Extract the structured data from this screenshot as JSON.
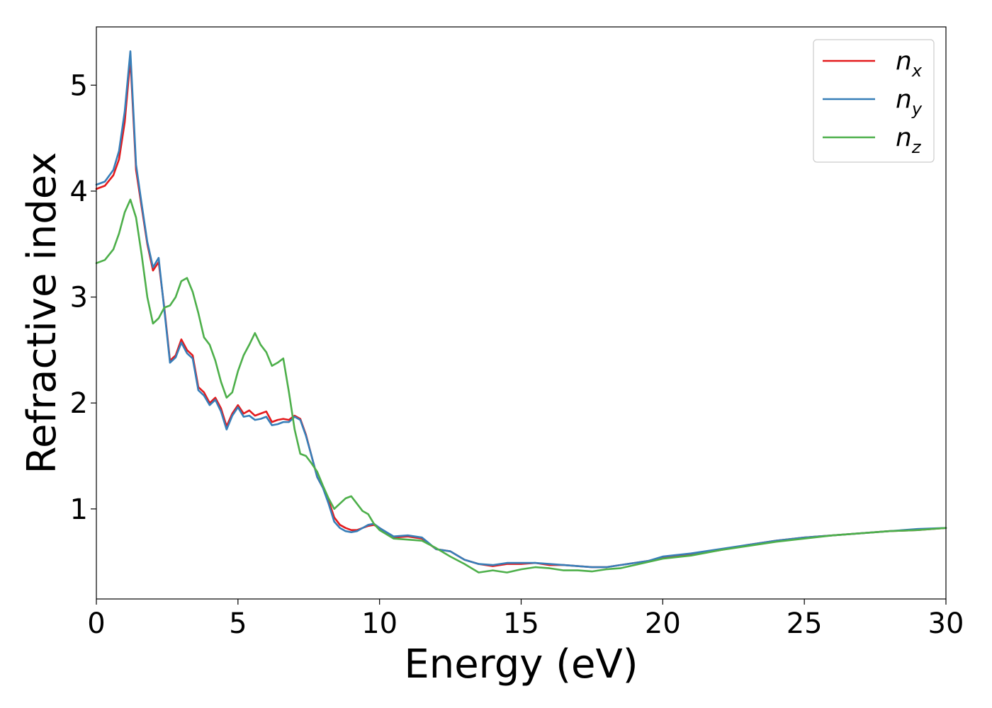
{
  "chart_data": {
    "type": "line",
    "title": "",
    "xlabel": "Energy (eV)",
    "ylabel": "Refractive index",
    "xlim": [
      0,
      30
    ],
    "ylim": [
      0.15,
      5.55
    ],
    "xticks": [
      0,
      5,
      10,
      15,
      20,
      25,
      30
    ],
    "xtick_labels": [
      "0",
      "5",
      "10",
      "15",
      "20",
      "25",
      "30"
    ],
    "yticks": [
      1,
      2,
      3,
      4,
      5
    ],
    "ytick_labels": [
      "1",
      "2",
      "3",
      "4",
      "5"
    ],
    "grid": false,
    "legend_position": "top-right",
    "series": [
      {
        "name": "n",
        "subscript": "x",
        "color": "#e41a1c",
        "x": [
          0,
          0.3,
          0.6,
          0.8,
          1.0,
          1.2,
          1.4,
          1.6,
          1.8,
          2.0,
          2.2,
          2.4,
          2.6,
          2.8,
          3.0,
          3.2,
          3.4,
          3.6,
          3.8,
          4.0,
          4.2,
          4.4,
          4.6,
          4.8,
          5.0,
          5.2,
          5.4,
          5.6,
          5.8,
          6.0,
          6.2,
          6.4,
          6.6,
          6.8,
          7.0,
          7.2,
          7.4,
          7.6,
          7.8,
          8.0,
          8.2,
          8.4,
          8.6,
          8.8,
          9.0,
          9.2,
          9.4,
          9.6,
          9.8,
          10.0,
          10.5,
          11.0,
          11.5,
          12.0,
          12.5,
          13.0,
          13.5,
          14.0,
          14.5,
          15.0,
          15.5,
          16.0,
          16.5,
          17.0,
          17.5,
          18.0,
          18.5,
          19.0,
          19.5,
          20.0,
          21.0,
          22.0,
          23.0,
          24.0,
          25.0,
          26.0,
          27.0,
          28.0,
          29.0,
          30.0
        ],
        "y": [
          4.02,
          4.05,
          4.15,
          4.3,
          4.65,
          5.25,
          4.2,
          3.85,
          3.5,
          3.25,
          3.33,
          2.9,
          2.4,
          2.45,
          2.6,
          2.5,
          2.45,
          2.15,
          2.1,
          2.0,
          2.05,
          1.95,
          1.78,
          1.9,
          1.98,
          1.9,
          1.93,
          1.88,
          1.9,
          1.92,
          1.82,
          1.84,
          1.85,
          1.84,
          1.88,
          1.85,
          1.7,
          1.5,
          1.3,
          1.2,
          1.08,
          0.92,
          0.85,
          0.82,
          0.8,
          0.8,
          0.82,
          0.84,
          0.85,
          0.82,
          0.73,
          0.74,
          0.72,
          0.62,
          0.6,
          0.52,
          0.48,
          0.46,
          0.48,
          0.48,
          0.49,
          0.47,
          0.47,
          0.46,
          0.45,
          0.45,
          0.47,
          0.49,
          0.51,
          0.54,
          0.57,
          0.61,
          0.66,
          0.7,
          0.73,
          0.75,
          0.77,
          0.79,
          0.8,
          0.82
        ]
      },
      {
        "name": "n",
        "subscript": "y",
        "color": "#377eb8",
        "x": [
          0,
          0.3,
          0.6,
          0.8,
          1.0,
          1.2,
          1.4,
          1.6,
          1.8,
          2.0,
          2.2,
          2.4,
          2.6,
          2.8,
          3.0,
          3.2,
          3.4,
          3.6,
          3.8,
          4.0,
          4.2,
          4.4,
          4.6,
          4.8,
          5.0,
          5.2,
          5.4,
          5.6,
          5.8,
          6.0,
          6.2,
          6.4,
          6.6,
          6.8,
          7.0,
          7.2,
          7.4,
          7.6,
          7.8,
          8.0,
          8.2,
          8.4,
          8.6,
          8.8,
          9.0,
          9.2,
          9.4,
          9.6,
          9.8,
          10.0,
          10.5,
          11.0,
          11.5,
          12.0,
          12.5,
          13.0,
          13.5,
          14.0,
          14.5,
          15.0,
          15.5,
          16.0,
          16.5,
          17.0,
          17.5,
          18.0,
          18.5,
          19.0,
          19.5,
          20.0,
          21.0,
          22.0,
          23.0,
          24.0,
          25.0,
          26.0,
          27.0,
          28.0,
          29.0,
          30.0
        ],
        "y": [
          4.06,
          4.09,
          4.2,
          4.38,
          4.75,
          5.32,
          4.25,
          3.88,
          3.52,
          3.28,
          3.37,
          2.88,
          2.38,
          2.43,
          2.57,
          2.47,
          2.42,
          2.12,
          2.07,
          1.98,
          2.03,
          1.92,
          1.75,
          1.88,
          1.96,
          1.87,
          1.88,
          1.84,
          1.85,
          1.87,
          1.79,
          1.8,
          1.82,
          1.82,
          1.87,
          1.84,
          1.69,
          1.5,
          1.3,
          1.2,
          1.05,
          0.88,
          0.82,
          0.79,
          0.78,
          0.79,
          0.82,
          0.85,
          0.86,
          0.82,
          0.74,
          0.75,
          0.73,
          0.62,
          0.6,
          0.52,
          0.48,
          0.47,
          0.49,
          0.49,
          0.49,
          0.48,
          0.47,
          0.46,
          0.45,
          0.45,
          0.47,
          0.49,
          0.51,
          0.55,
          0.58,
          0.62,
          0.66,
          0.7,
          0.73,
          0.75,
          0.77,
          0.79,
          0.81,
          0.82
        ]
      },
      {
        "name": "n",
        "subscript": "z",
        "color": "#4daf4a",
        "x": [
          0,
          0.3,
          0.6,
          0.8,
          1.0,
          1.2,
          1.4,
          1.6,
          1.8,
          2.0,
          2.2,
          2.4,
          2.6,
          2.8,
          3.0,
          3.2,
          3.4,
          3.6,
          3.8,
          4.0,
          4.2,
          4.4,
          4.6,
          4.8,
          5.0,
          5.2,
          5.4,
          5.6,
          5.8,
          6.0,
          6.2,
          6.4,
          6.6,
          6.8,
          7.0,
          7.2,
          7.4,
          7.6,
          7.8,
          8.0,
          8.2,
          8.4,
          8.6,
          8.8,
          9.0,
          9.2,
          9.4,
          9.6,
          9.8,
          10.0,
          10.5,
          11.0,
          11.5,
          12.0,
          12.5,
          13.0,
          13.5,
          14.0,
          14.5,
          15.0,
          15.5,
          16.0,
          16.5,
          17.0,
          17.5,
          18.0,
          18.5,
          19.0,
          19.5,
          20.0,
          21.0,
          22.0,
          23.0,
          24.0,
          25.0,
          26.0,
          27.0,
          28.0,
          29.0,
          30.0
        ],
        "y": [
          3.32,
          3.35,
          3.45,
          3.6,
          3.8,
          3.92,
          3.75,
          3.4,
          3.0,
          2.75,
          2.8,
          2.9,
          2.92,
          3.0,
          3.15,
          3.18,
          3.05,
          2.85,
          2.62,
          2.55,
          2.4,
          2.2,
          2.05,
          2.1,
          2.3,
          2.45,
          2.55,
          2.66,
          2.55,
          2.48,
          2.35,
          2.38,
          2.42,
          2.1,
          1.75,
          1.52,
          1.5,
          1.43,
          1.35,
          1.22,
          1.1,
          1.0,
          1.05,
          1.1,
          1.12,
          1.05,
          0.98,
          0.95,
          0.86,
          0.8,
          0.72,
          0.71,
          0.7,
          0.63,
          0.55,
          0.48,
          0.4,
          0.42,
          0.4,
          0.43,
          0.45,
          0.44,
          0.42,
          0.42,
          0.41,
          0.43,
          0.44,
          0.47,
          0.5,
          0.53,
          0.56,
          0.61,
          0.65,
          0.69,
          0.72,
          0.75,
          0.77,
          0.79,
          0.8,
          0.82
        ]
      }
    ]
  }
}
